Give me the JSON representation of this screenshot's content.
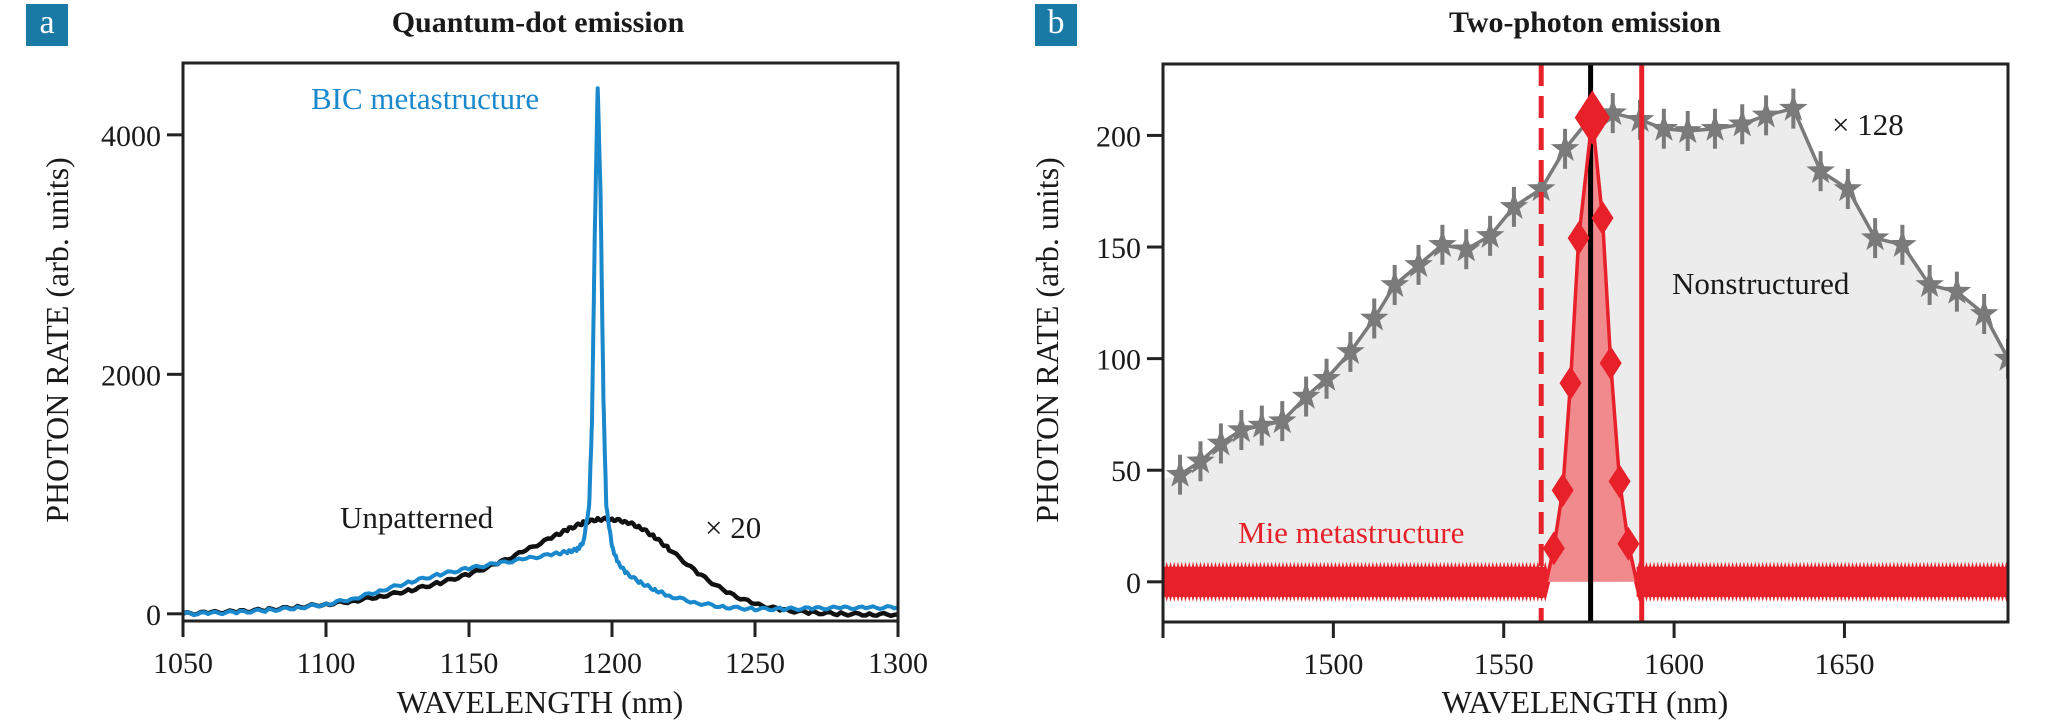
{
  "colors": {
    "badge": "#1a7aa6",
    "bic": "#1a88cc",
    "unpatterned": "#111111",
    "nonstructured": "#7a7a7a",
    "nonstructured_fill": "#ececec",
    "mie": "#e8202a",
    "mie_fill": "#f08a8d",
    "axis": "#222222",
    "text": "#1a1a1a"
  },
  "panels": [
    {
      "badge": "a",
      "title": "Quantum-dot emission"
    },
    {
      "badge": "b",
      "title": "Two-photon emission"
    }
  ],
  "chart_data": [
    {
      "type": "line",
      "title": "Quantum-dot emission",
      "xlabel": "WAVELENGTH (nm)",
      "ylabel": "PHOTON RATE (arb. units)",
      "xlim": [
        1050,
        1300
      ],
      "ylim": [
        -60,
        4600
      ],
      "xticks": [
        1050,
        1100,
        1150,
        1200,
        1250,
        1300
      ],
      "yticks": [
        0,
        2000,
        4000
      ],
      "grid": false,
      "annotations": [
        {
          "text": "BIC metastructure",
          "series": "BIC metastructure"
        },
        {
          "text": "Unpatterned",
          "series": "Unpatterned"
        },
        {
          "text": "× 20",
          "series": "Unpatterned"
        }
      ],
      "series": [
        {
          "name": "BIC metastructure",
          "x": [
            1050,
            1060,
            1070,
            1080,
            1090,
            1100,
            1110,
            1120,
            1130,
            1140,
            1150,
            1160,
            1170,
            1180,
            1185,
            1188,
            1190,
            1192,
            1193,
            1194,
            1195,
            1196,
            1197,
            1198,
            1200,
            1202,
            1205,
            1210,
            1215,
            1220,
            1230,
            1240,
            1250,
            1260,
            1270,
            1280,
            1290,
            1300
          ],
          "y": [
            0,
            5,
            15,
            30,
            50,
            80,
            130,
            200,
            270,
            330,
            380,
            420,
            460,
            500,
            520,
            540,
            600,
            900,
            1600,
            3200,
            4400,
            3500,
            1800,
            900,
            560,
            430,
            340,
            260,
            200,
            150,
            90,
            55,
            40,
            40,
            45,
            50,
            50,
            55
          ]
        },
        {
          "name": "Unpatterned",
          "x": [
            1050,
            1060,
            1070,
            1080,
            1090,
            1100,
            1110,
            1120,
            1130,
            1140,
            1150,
            1160,
            1170,
            1180,
            1185,
            1190,
            1195,
            1200,
            1205,
            1210,
            1215,
            1220,
            1230,
            1240,
            1250,
            1260,
            1270,
            1280,
            1290,
            1300
          ],
          "y": [
            0,
            10,
            20,
            35,
            55,
            80,
            110,
            150,
            200,
            260,
            330,
            420,
            530,
            650,
            710,
            760,
            790,
            790,
            770,
            720,
            640,
            540,
            340,
            180,
            80,
            30,
            10,
            0,
            -5,
            -5
          ]
        }
      ]
    },
    {
      "type": "line",
      "title": "Two-photon emission",
      "xlabel": "WAVELENGTH (nm)",
      "ylabel": "PHOTON RATE (arb. units)",
      "xlim": [
        1450,
        1698
      ],
      "ylim": [
        -18,
        232
      ],
      "xticks": [
        1500,
        1550,
        1600,
        1650
      ],
      "yticks": [
        0,
        50,
        100,
        150,
        200
      ],
      "grid": false,
      "annotations": [
        {
          "text": "× 128",
          "series": "Nonstructured"
        },
        {
          "text": "Nonstructured",
          "series": "Nonstructured"
        },
        {
          "text": "Mie metastructure",
          "series": "Mie metastructure"
        }
      ],
      "vlines": [
        {
          "x": 1561,
          "style": "dashed",
          "color": "mie"
        },
        {
          "x": 1575.5,
          "style": "solid",
          "color": "black"
        },
        {
          "x": 1590.5,
          "style": "solid",
          "color": "mie"
        }
      ],
      "series": [
        {
          "name": "Nonstructured",
          "marker": "star",
          "fill": true,
          "x": [
            1455,
            1461,
            1467,
            1473,
            1479,
            1485,
            1492,
            1498,
            1505,
            1512,
            1518,
            1525,
            1532,
            1539,
            1546,
            1553,
            1561,
            1568,
            1576,
            1582,
            1590,
            1597,
            1604,
            1612,
            1620,
            1627,
            1635,
            1643,
            1651,
            1659,
            1667,
            1675,
            1683,
            1691,
            1698
          ],
          "y": [
            48,
            54,
            62,
            68,
            70,
            72,
            83,
            91,
            103,
            118,
            133,
            142,
            151,
            149,
            155,
            168,
            176,
            194,
            209,
            210,
            207,
            203,
            202,
            203,
            205,
            209,
            212,
            184,
            176,
            154,
            151,
            133,
            130,
            120,
            100
          ]
        },
        {
          "name": "Mie metastructure",
          "marker": "diamond",
          "fill": true,
          "baseline_noise": 9,
          "x": [
            1562.5,
            1564.7,
            1567.3,
            1569.6,
            1572,
            1576,
            1579,
            1581.4,
            1584,
            1586.6,
            1589
          ],
          "y": [
            0,
            15,
            41,
            89,
            154,
            208,
            163,
            98,
            45,
            17,
            0
          ]
        }
      ]
    }
  ]
}
